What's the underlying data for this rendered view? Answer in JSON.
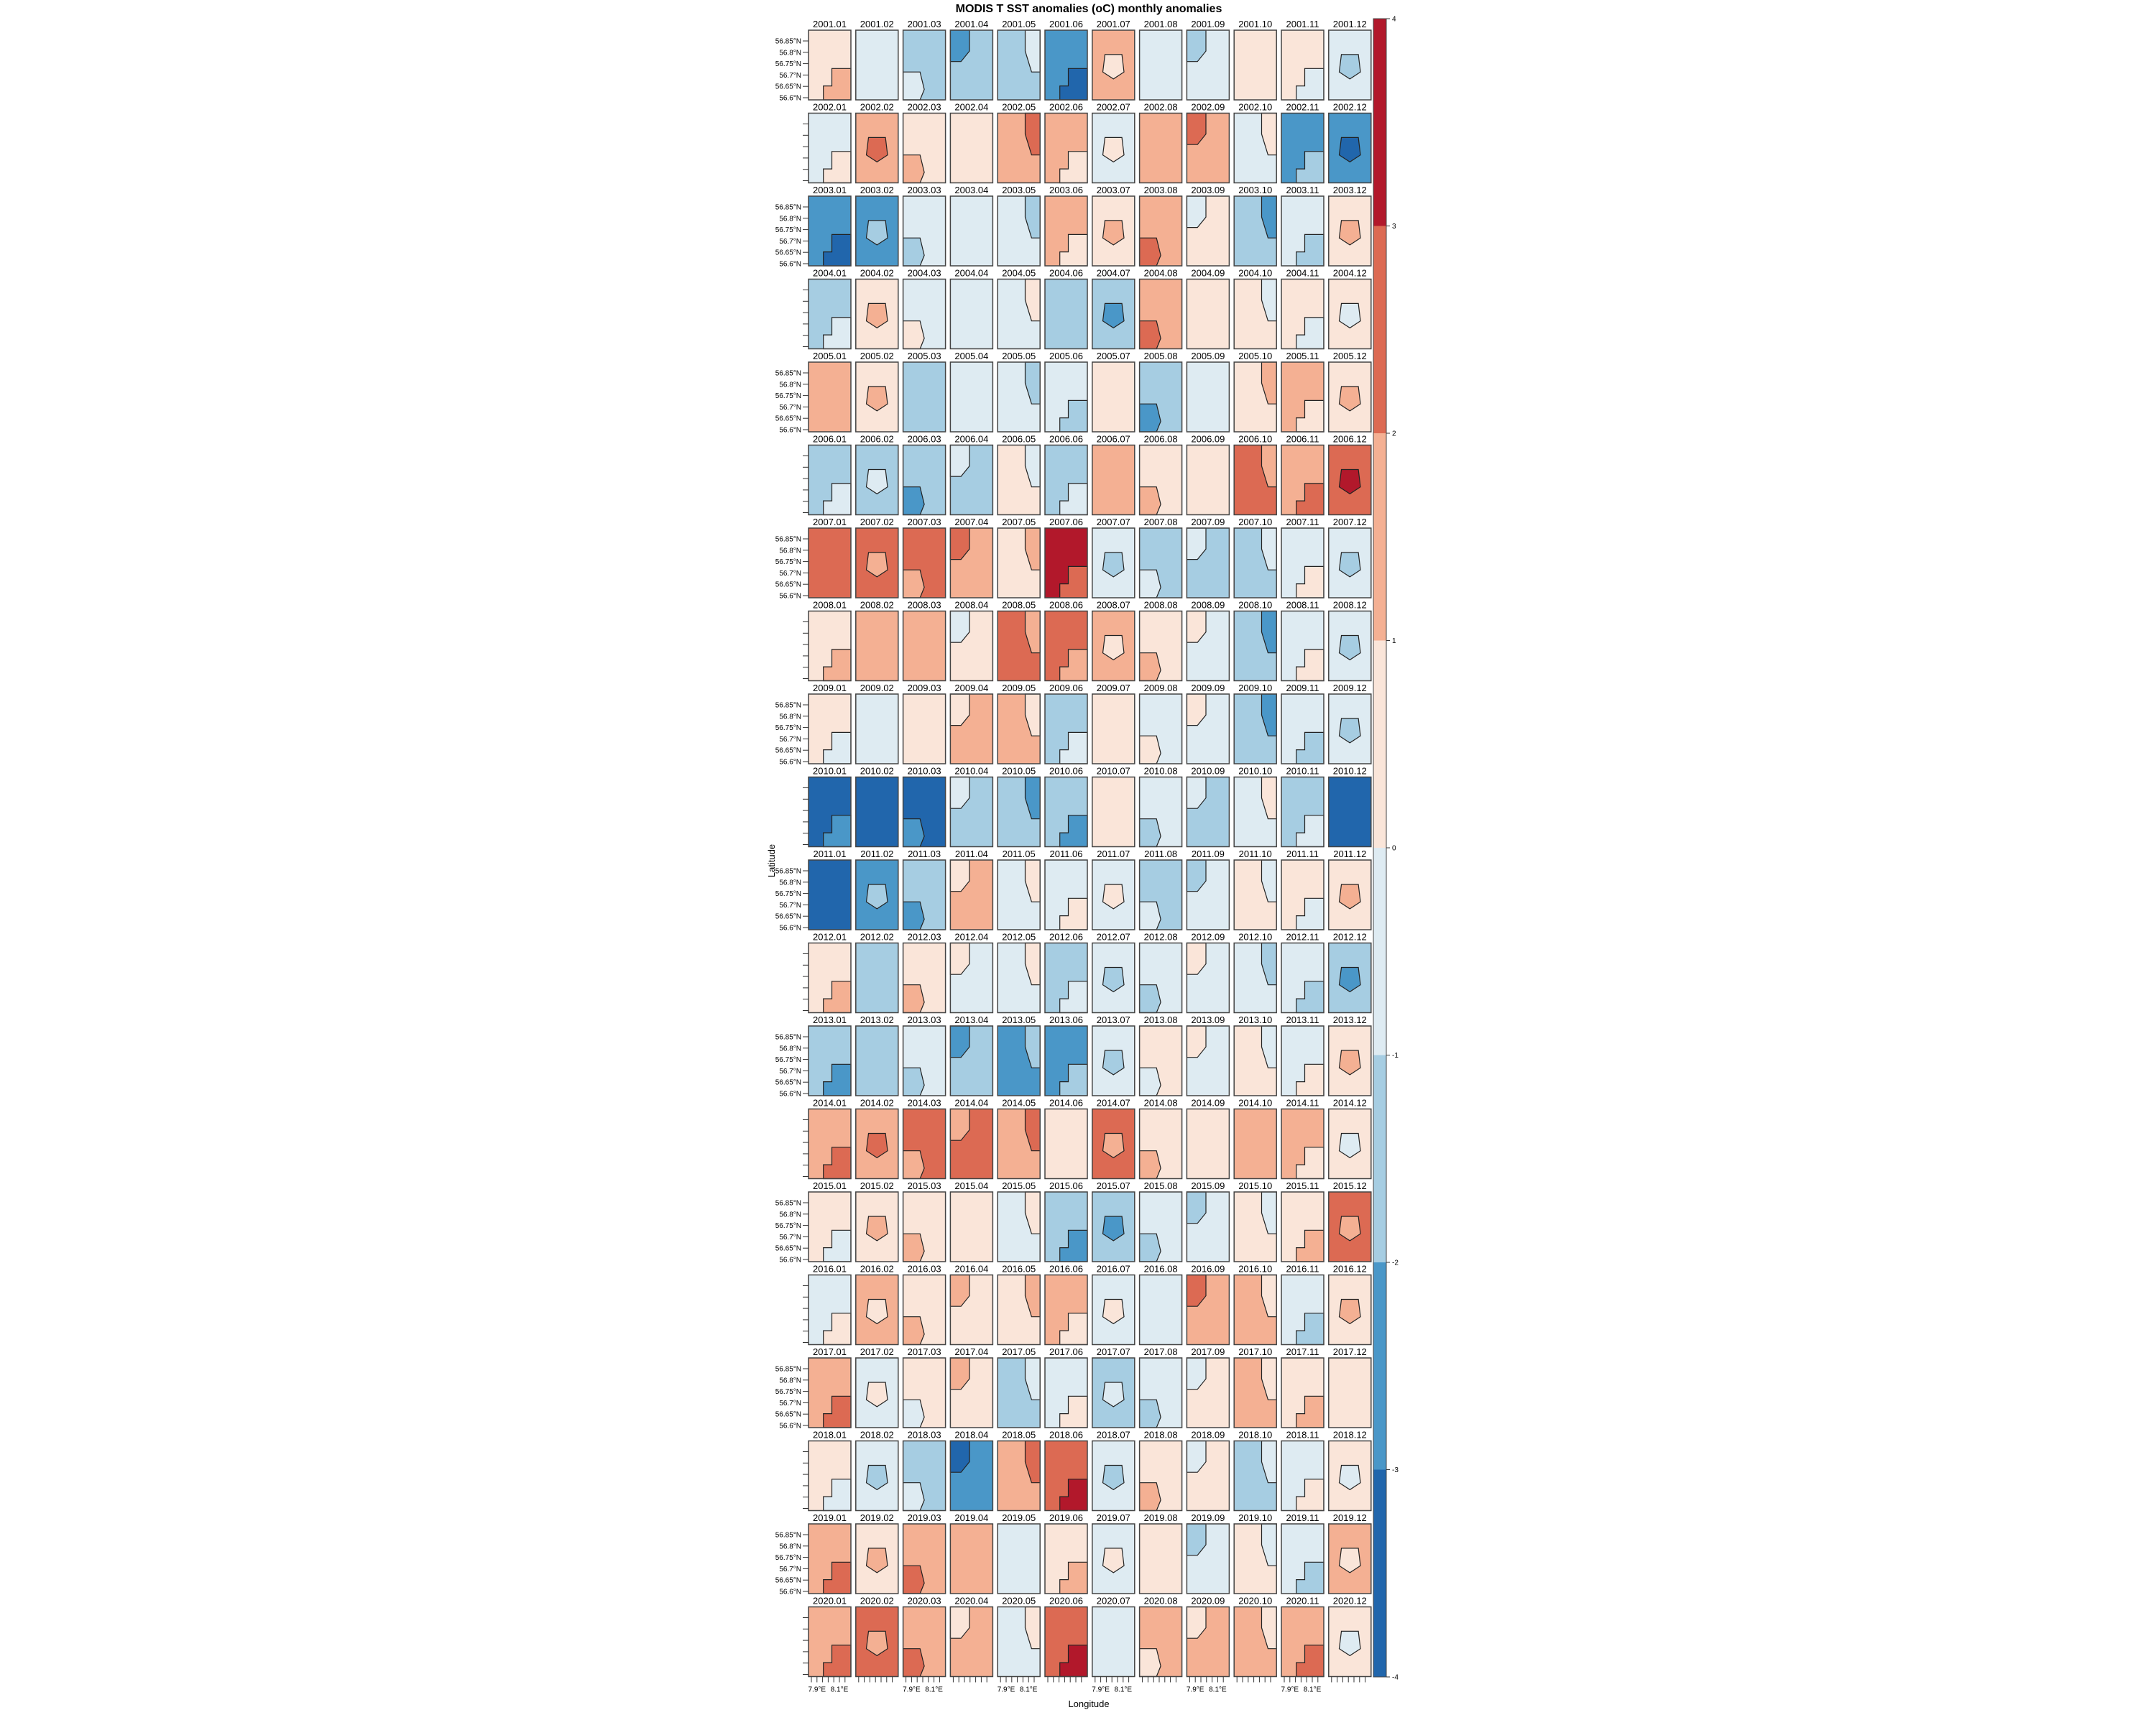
{
  "chart_data": {
    "type": "heatmap",
    "title": "MODIS T SST anomalies (oC) monthly anomalies",
    "xlabel": "Longitude",
    "ylabel": "Latitude",
    "lat_ticks": [
      "56.85°N",
      "56.8°N",
      "56.75°N",
      "56.7°N",
      "56.65°N",
      "56.6°N"
    ],
    "lon_ticks": [
      "7.9°E",
      "8.1°E"
    ],
    "colorbar": {
      "range": [
        -4,
        4
      ],
      "ticks": [
        "4",
        "3",
        "2",
        "1",
        "0",
        "-1",
        "-2",
        "-3",
        "-4"
      ],
      "bins": [
        {
          "range": [
            3,
            4
          ],
          "color": "#b2182b"
        },
        {
          "range": [
            2,
            3
          ],
          "color": "#dc6a53"
        },
        {
          "range": [
            1,
            2
          ],
          "color": "#f4b093"
        },
        {
          "range": [
            0,
            1
          ],
          "color": "#fae5d9"
        },
        {
          "range": [
            -1,
            0
          ],
          "color": "#deebf2"
        },
        {
          "range": [
            -2,
            -1
          ],
          "color": "#a6cde2"
        },
        {
          "range": [
            -3,
            -2
          ],
          "color": "#4a97c8"
        },
        {
          "range": [
            -4,
            -3
          ],
          "color": "#2166ac"
        }
      ]
    },
    "panels_note_fields": [
      "label",
      "dominant_anomaly",
      "secondary_anomaly"
    ],
    "panels": [
      [
        "2001.01",
        0.5,
        1.5
      ],
      [
        "2001.02",
        -0.5,
        null
      ],
      [
        "2001.03",
        -1.5,
        -0.5
      ],
      [
        "2001.04",
        -1.5,
        -2.5
      ],
      [
        "2001.05",
        -1.5,
        -0.5
      ],
      [
        "2001.06",
        -2.5,
        -3.5
      ],
      [
        "2001.07",
        1.5,
        0.5
      ],
      [
        "2001.08",
        -0.5,
        null
      ],
      [
        "2001.09",
        -0.5,
        -1.5
      ],
      [
        "2001.10",
        0.5,
        null
      ],
      [
        "2001.11",
        0.5,
        -0.5
      ],
      [
        "2001.12",
        -0.5,
        -1.5
      ],
      [
        "2002.01",
        -0.5,
        0.5
      ],
      [
        "2002.02",
        1.5,
        2.5
      ],
      [
        "2002.03",
        0.5,
        1.5
      ],
      [
        "2002.04",
        0.5,
        null
      ],
      [
        "2002.05",
        1.5,
        2.5
      ],
      [
        "2002.06",
        1.5,
        0.5
      ],
      [
        "2002.07",
        -0.5,
        0.5
      ],
      [
        "2002.08",
        1.5,
        null
      ],
      [
        "2002.09",
        1.5,
        2.5
      ],
      [
        "2002.10",
        -0.5,
        0.5
      ],
      [
        "2002.11",
        -2.5,
        -1.5
      ],
      [
        "2002.12",
        -2.5,
        -3.5
      ],
      [
        "2003.01",
        -2.5,
        -3.5
      ],
      [
        "2003.02",
        -2.5,
        -1.5
      ],
      [
        "2003.03",
        -0.5,
        -1.5
      ],
      [
        "2003.04",
        -0.5,
        null
      ],
      [
        "2003.05",
        -0.5,
        -1.5
      ],
      [
        "2003.06",
        1.5,
        0.5
      ],
      [
        "2003.07",
        0.5,
        1.5
      ],
      [
        "2003.08",
        1.5,
        2.5
      ],
      [
        "2003.09",
        0.5,
        -0.5
      ],
      [
        "2003.10",
        -1.5,
        -2.5
      ],
      [
        "2003.11",
        -0.5,
        -1.5
      ],
      [
        "2003.12",
        0.5,
        1.5
      ],
      [
        "2004.01",
        -1.5,
        -0.5
      ],
      [
        "2004.02",
        0.5,
        1.5
      ],
      [
        "2004.03",
        -0.5,
        0.5
      ],
      [
        "2004.04",
        -0.5,
        null
      ],
      [
        "2004.05",
        -0.5,
        0.5
      ],
      [
        "2004.06",
        -1.5,
        null
      ],
      [
        "2004.07",
        -1.5,
        -2.5
      ],
      [
        "2004.08",
        1.5,
        2.5
      ],
      [
        "2004.09",
        0.5,
        null
      ],
      [
        "2004.10",
        0.5,
        -0.5
      ],
      [
        "2004.11",
        0.5,
        -0.5
      ],
      [
        "2004.12",
        0.5,
        -0.5
      ],
      [
        "2005.01",
        1.5,
        null
      ],
      [
        "2005.02",
        0.5,
        1.5
      ],
      [
        "2005.03",
        -1.5,
        null
      ],
      [
        "2005.04",
        -0.5,
        null
      ],
      [
        "2005.05",
        -0.5,
        -1.5
      ],
      [
        "2005.06",
        -0.5,
        -1.5
      ],
      [
        "2005.07",
        0.5,
        null
      ],
      [
        "2005.08",
        -1.5,
        -2.5
      ],
      [
        "2005.09",
        -0.5,
        null
      ],
      [
        "2005.10",
        0.5,
        1.5
      ],
      [
        "2005.11",
        1.5,
        0.5
      ],
      [
        "2005.12",
        0.5,
        1.5
      ],
      [
        "2006.01",
        -1.5,
        -0.5
      ],
      [
        "2006.02",
        -1.5,
        -0.5
      ],
      [
        "2006.03",
        -1.5,
        -2.5
      ],
      [
        "2006.04",
        -1.5,
        -0.5
      ],
      [
        "2006.05",
        0.5,
        -0.5
      ],
      [
        "2006.06",
        -1.5,
        -0.5
      ],
      [
        "2006.07",
        1.5,
        null
      ],
      [
        "2006.08",
        0.5,
        1.5
      ],
      [
        "2006.09",
        0.5,
        null
      ],
      [
        "2006.10",
        2.5,
        1.5
      ],
      [
        "2006.11",
        1.5,
        2.5
      ],
      [
        "2006.12",
        2.5,
        3.5
      ],
      [
        "2007.01",
        2.5,
        null
      ],
      [
        "2007.02",
        2.5,
        1.5
      ],
      [
        "2007.03",
        2.5,
        1.5
      ],
      [
        "2007.04",
        1.5,
        2.5
      ],
      [
        "2007.05",
        0.5,
        1.5
      ],
      [
        "2007.06",
        3.5,
        2.5
      ],
      [
        "2007.07",
        -0.5,
        -1.5
      ],
      [
        "2007.08",
        -1.5,
        -0.5
      ],
      [
        "2007.09",
        -1.5,
        -0.5
      ],
      [
        "2007.10",
        -1.5,
        -0.5
      ],
      [
        "2007.11",
        -0.5,
        0.5
      ],
      [
        "2007.12",
        -0.5,
        -1.5
      ],
      [
        "2008.01",
        0.5,
        1.5
      ],
      [
        "2008.02",
        1.5,
        null
      ],
      [
        "2008.03",
        1.5,
        null
      ],
      [
        "2008.04",
        0.5,
        -0.5
      ],
      [
        "2008.05",
        2.5,
        1.5
      ],
      [
        "2008.06",
        2.5,
        1.5
      ],
      [
        "2008.07",
        1.5,
        0.5
      ],
      [
        "2008.08",
        0.5,
        1.5
      ],
      [
        "2008.09",
        -0.5,
        0.5
      ],
      [
        "2008.10",
        -1.5,
        -2.5
      ],
      [
        "2008.11",
        -0.5,
        0.5
      ],
      [
        "2008.12",
        -0.5,
        -1.5
      ],
      [
        "2009.01",
        0.5,
        -0.5
      ],
      [
        "2009.02",
        -0.5,
        null
      ],
      [
        "2009.03",
        0.5,
        null
      ],
      [
        "2009.04",
        1.5,
        0.5
      ],
      [
        "2009.05",
        1.5,
        0.5
      ],
      [
        "2009.06",
        -1.5,
        -0.5
      ],
      [
        "2009.07",
        0.5,
        null
      ],
      [
        "2009.08",
        -0.5,
        0.5
      ],
      [
        "2009.09",
        -0.5,
        0.5
      ],
      [
        "2009.10",
        -1.5,
        -2.5
      ],
      [
        "2009.11",
        -0.5,
        -1.5
      ],
      [
        "2009.12",
        -0.5,
        -1.5
      ],
      [
        "2010.01",
        -3.5,
        -2.5
      ],
      [
        "2010.02",
        -3.5,
        null
      ],
      [
        "2010.03",
        -3.5,
        -2.5
      ],
      [
        "2010.04",
        -1.5,
        -0.5
      ],
      [
        "2010.05",
        -1.5,
        -2.5
      ],
      [
        "2010.06",
        -1.5,
        -2.5
      ],
      [
        "2010.07",
        0.5,
        null
      ],
      [
        "2010.08",
        -0.5,
        -1.5
      ],
      [
        "2010.09",
        -1.5,
        -0.5
      ],
      [
        "2010.10",
        -0.5,
        0.5
      ],
      [
        "2010.11",
        -1.5,
        -0.5
      ],
      [
        "2010.12",
        -3.5,
        null
      ],
      [
        "2011.01",
        -3.5,
        null
      ],
      [
        "2011.02",
        -2.5,
        -1.5
      ],
      [
        "2011.03",
        -1.5,
        -2.5
      ],
      [
        "2011.04",
        1.5,
        0.5
      ],
      [
        "2011.05",
        -0.5,
        0.5
      ],
      [
        "2011.06",
        -0.5,
        0.5
      ],
      [
        "2011.07",
        -0.5,
        0.5
      ],
      [
        "2011.08",
        -1.5,
        -0.5
      ],
      [
        "2011.09",
        -0.5,
        -1.5
      ],
      [
        "2011.10",
        0.5,
        -0.5
      ],
      [
        "2011.11",
        0.5,
        -0.5
      ],
      [
        "2011.12",
        0.5,
        1.5
      ],
      [
        "2012.01",
        0.5,
        1.5
      ],
      [
        "2012.02",
        -1.5,
        null
      ],
      [
        "2012.03",
        0.5,
        1.5
      ],
      [
        "2012.04",
        -0.5,
        0.5
      ],
      [
        "2012.05",
        -0.5,
        0.5
      ],
      [
        "2012.06",
        -1.5,
        -0.5
      ],
      [
        "2012.07",
        -0.5,
        -1.5
      ],
      [
        "2012.08",
        -0.5,
        -1.5
      ],
      [
        "2012.09",
        -0.5,
        0.5
      ],
      [
        "2012.10",
        -0.5,
        -1.5
      ],
      [
        "2012.11",
        -0.5,
        -1.5
      ],
      [
        "2012.12",
        -1.5,
        -2.5
      ],
      [
        "2013.01",
        -1.5,
        -2.5
      ],
      [
        "2013.02",
        -1.5,
        null
      ],
      [
        "2013.03",
        -0.5,
        -1.5
      ],
      [
        "2013.04",
        -1.5,
        -2.5
      ],
      [
        "2013.05",
        -2.5,
        -1.5
      ],
      [
        "2013.06",
        -2.5,
        -1.5
      ],
      [
        "2013.07",
        -0.5,
        -1.5
      ],
      [
        "2013.08",
        0.5,
        -0.5
      ],
      [
        "2013.09",
        -0.5,
        0.5
      ],
      [
        "2013.10",
        0.5,
        -0.5
      ],
      [
        "2013.11",
        -0.5,
        0.5
      ],
      [
        "2013.12",
        0.5,
        1.5
      ],
      [
        "2014.01",
        1.5,
        2.5
      ],
      [
        "2014.02",
        1.5,
        2.5
      ],
      [
        "2014.03",
        2.5,
        1.5
      ],
      [
        "2014.04",
        2.5,
        1.5
      ],
      [
        "2014.05",
        1.5,
        2.5
      ],
      [
        "2014.06",
        0.5,
        null
      ],
      [
        "2014.07",
        2.5,
        1.5
      ],
      [
        "2014.08",
        0.5,
        1.5
      ],
      [
        "2014.09",
        0.5,
        null
      ],
      [
        "2014.10",
        1.5,
        null
      ],
      [
        "2014.11",
        1.5,
        0.5
      ],
      [
        "2014.12",
        0.5,
        -0.5
      ],
      [
        "2015.01",
        0.5,
        -0.5
      ],
      [
        "2015.02",
        0.5,
        1.5
      ],
      [
        "2015.03",
        0.5,
        1.5
      ],
      [
        "2015.04",
        0.5,
        null
      ],
      [
        "2015.05",
        -0.5,
        0.5
      ],
      [
        "2015.06",
        -1.5,
        -2.5
      ],
      [
        "2015.07",
        -1.5,
        -2.5
      ],
      [
        "2015.08",
        -0.5,
        -1.5
      ],
      [
        "2015.09",
        -0.5,
        -1.5
      ],
      [
        "2015.10",
        0.5,
        -0.5
      ],
      [
        "2015.11",
        0.5,
        1.5
      ],
      [
        "2015.12",
        2.5,
        1.5
      ],
      [
        "2016.01",
        -0.5,
        0.5
      ],
      [
        "2016.02",
        1.5,
        0.5
      ],
      [
        "2016.03",
        0.5,
        1.5
      ],
      [
        "2016.04",
        0.5,
        1.5
      ],
      [
        "2016.05",
        0.5,
        1.5
      ],
      [
        "2016.06",
        1.5,
        0.5
      ],
      [
        "2016.07",
        -0.5,
        0.5
      ],
      [
        "2016.08",
        -0.5,
        null
      ],
      [
        "2016.09",
        1.5,
        2.5
      ],
      [
        "2016.10",
        1.5,
        0.5
      ],
      [
        "2016.11",
        -0.5,
        -1.5
      ],
      [
        "2016.12",
        0.5,
        1.5
      ],
      [
        "2017.01",
        1.5,
        2.5
      ],
      [
        "2017.02",
        -0.5,
        0.5
      ],
      [
        "2017.03",
        0.5,
        -0.5
      ],
      [
        "2017.04",
        0.5,
        1.5
      ],
      [
        "2017.05",
        -1.5,
        -0.5
      ],
      [
        "2017.06",
        -0.5,
        0.5
      ],
      [
        "2017.07",
        -1.5,
        -0.5
      ],
      [
        "2017.08",
        -0.5,
        -1.5
      ],
      [
        "2017.09",
        0.5,
        -0.5
      ],
      [
        "2017.10",
        1.5,
        0.5
      ],
      [
        "2017.11",
        0.5,
        1.5
      ],
      [
        "2017.12",
        0.5,
        null
      ],
      [
        "2018.01",
        0.5,
        -0.5
      ],
      [
        "2018.02",
        -0.5,
        -1.5
      ],
      [
        "2018.03",
        -1.5,
        -0.5
      ],
      [
        "2018.04",
        -2.5,
        -3.5
      ],
      [
        "2018.05",
        1.5,
        2.5
      ],
      [
        "2018.06",
        2.5,
        3.5
      ],
      [
        "2018.07",
        -0.5,
        -1.5
      ],
      [
        "2018.08",
        0.5,
        1.5
      ],
      [
        "2018.09",
        0.5,
        -0.5
      ],
      [
        "2018.10",
        -1.5,
        -0.5
      ],
      [
        "2018.11",
        -0.5,
        0.5
      ],
      [
        "2018.12",
        0.5,
        -0.5
      ],
      [
        "2019.01",
        1.5,
        2.5
      ],
      [
        "2019.02",
        0.5,
        1.5
      ],
      [
        "2019.03",
        1.5,
        2.5
      ],
      [
        "2019.04",
        1.5,
        null
      ],
      [
        "2019.05",
        -0.5,
        null
      ],
      [
        "2019.06",
        0.5,
        1.5
      ],
      [
        "2019.07",
        -0.5,
        0.5
      ],
      [
        "2019.08",
        0.5,
        null
      ],
      [
        "2019.09",
        -0.5,
        -1.5
      ],
      [
        "2019.10",
        0.5,
        -0.5
      ],
      [
        "2019.11",
        -0.5,
        -1.5
      ],
      [
        "2019.12",
        1.5,
        0.5
      ],
      [
        "2020.01",
        1.5,
        2.5
      ],
      [
        "2020.02",
        2.5,
        1.5
      ],
      [
        "2020.03",
        1.5,
        2.5
      ],
      [
        "2020.04",
        1.5,
        0.5
      ],
      [
        "2020.05",
        -0.5,
        0.5
      ],
      [
        "2020.06",
        2.5,
        3.5
      ],
      [
        "2020.07",
        -0.5,
        null
      ],
      [
        "2020.08",
        1.5,
        0.5
      ],
      [
        "2020.09",
        1.5,
        0.5
      ],
      [
        "2020.10",
        1.5,
        0.5
      ],
      [
        "2020.11",
        1.5,
        2.5
      ],
      [
        "2020.12",
        0.5,
        -0.5
      ]
    ]
  }
}
